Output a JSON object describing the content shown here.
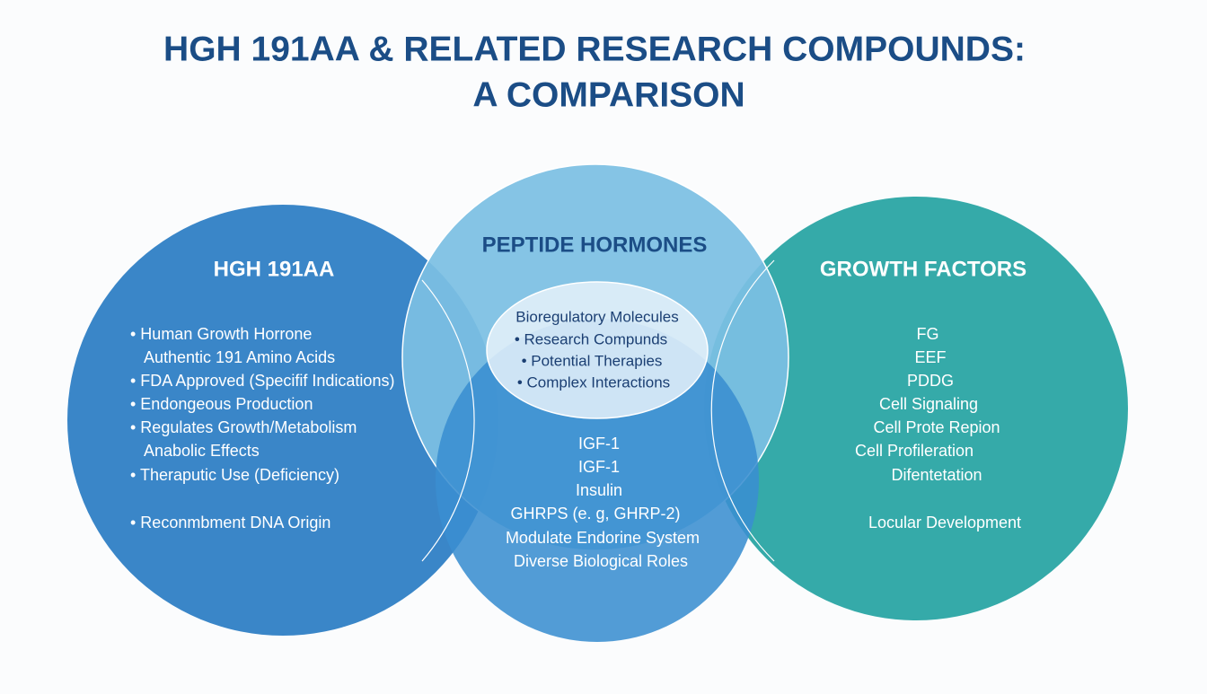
{
  "title": {
    "lines": [
      "HGH 191AA & RELATED RESEARCH COMPOUNDS:",
      "A COMPARISON"
    ]
  },
  "circles": [
    {
      "heading": "HGH 191AA",
      "items": [
        "• Human Growth Horrone",
        "Authentic 191 Amino Acids",
        "• FDA Approved (Specifif Indications)",
        "• Endongeous Production",
        "• Regulates Growth/Metabolism",
        "Anabolic Effects",
        "• Theraputic Use (Deficiency)",
        "• Reconmbment DNA Origin"
      ]
    },
    {
      "heading": "PEPTIDE HORMONES",
      "overlap": [
        "Bioregulatory Molecules",
        "• Research Compunds",
        "• Potential Therapies",
        "• Complex Interactions"
      ],
      "items": [
        "IGF-1",
        "IGF-1",
        "Insulin",
        "GHRPS (e. g, GHRP-2)",
        "Modulate Endorine System",
        "Diverse Biological Roles"
      ]
    },
    {
      "heading": "GROWTH FACTORS",
      "items": [
        "FG",
        "EEF",
        "PDDG",
        "Cell Signaling",
        "Cell Prote Repion",
        "Cell Profileration",
        "Difentetation",
        "Locular Development"
      ]
    }
  ]
}
